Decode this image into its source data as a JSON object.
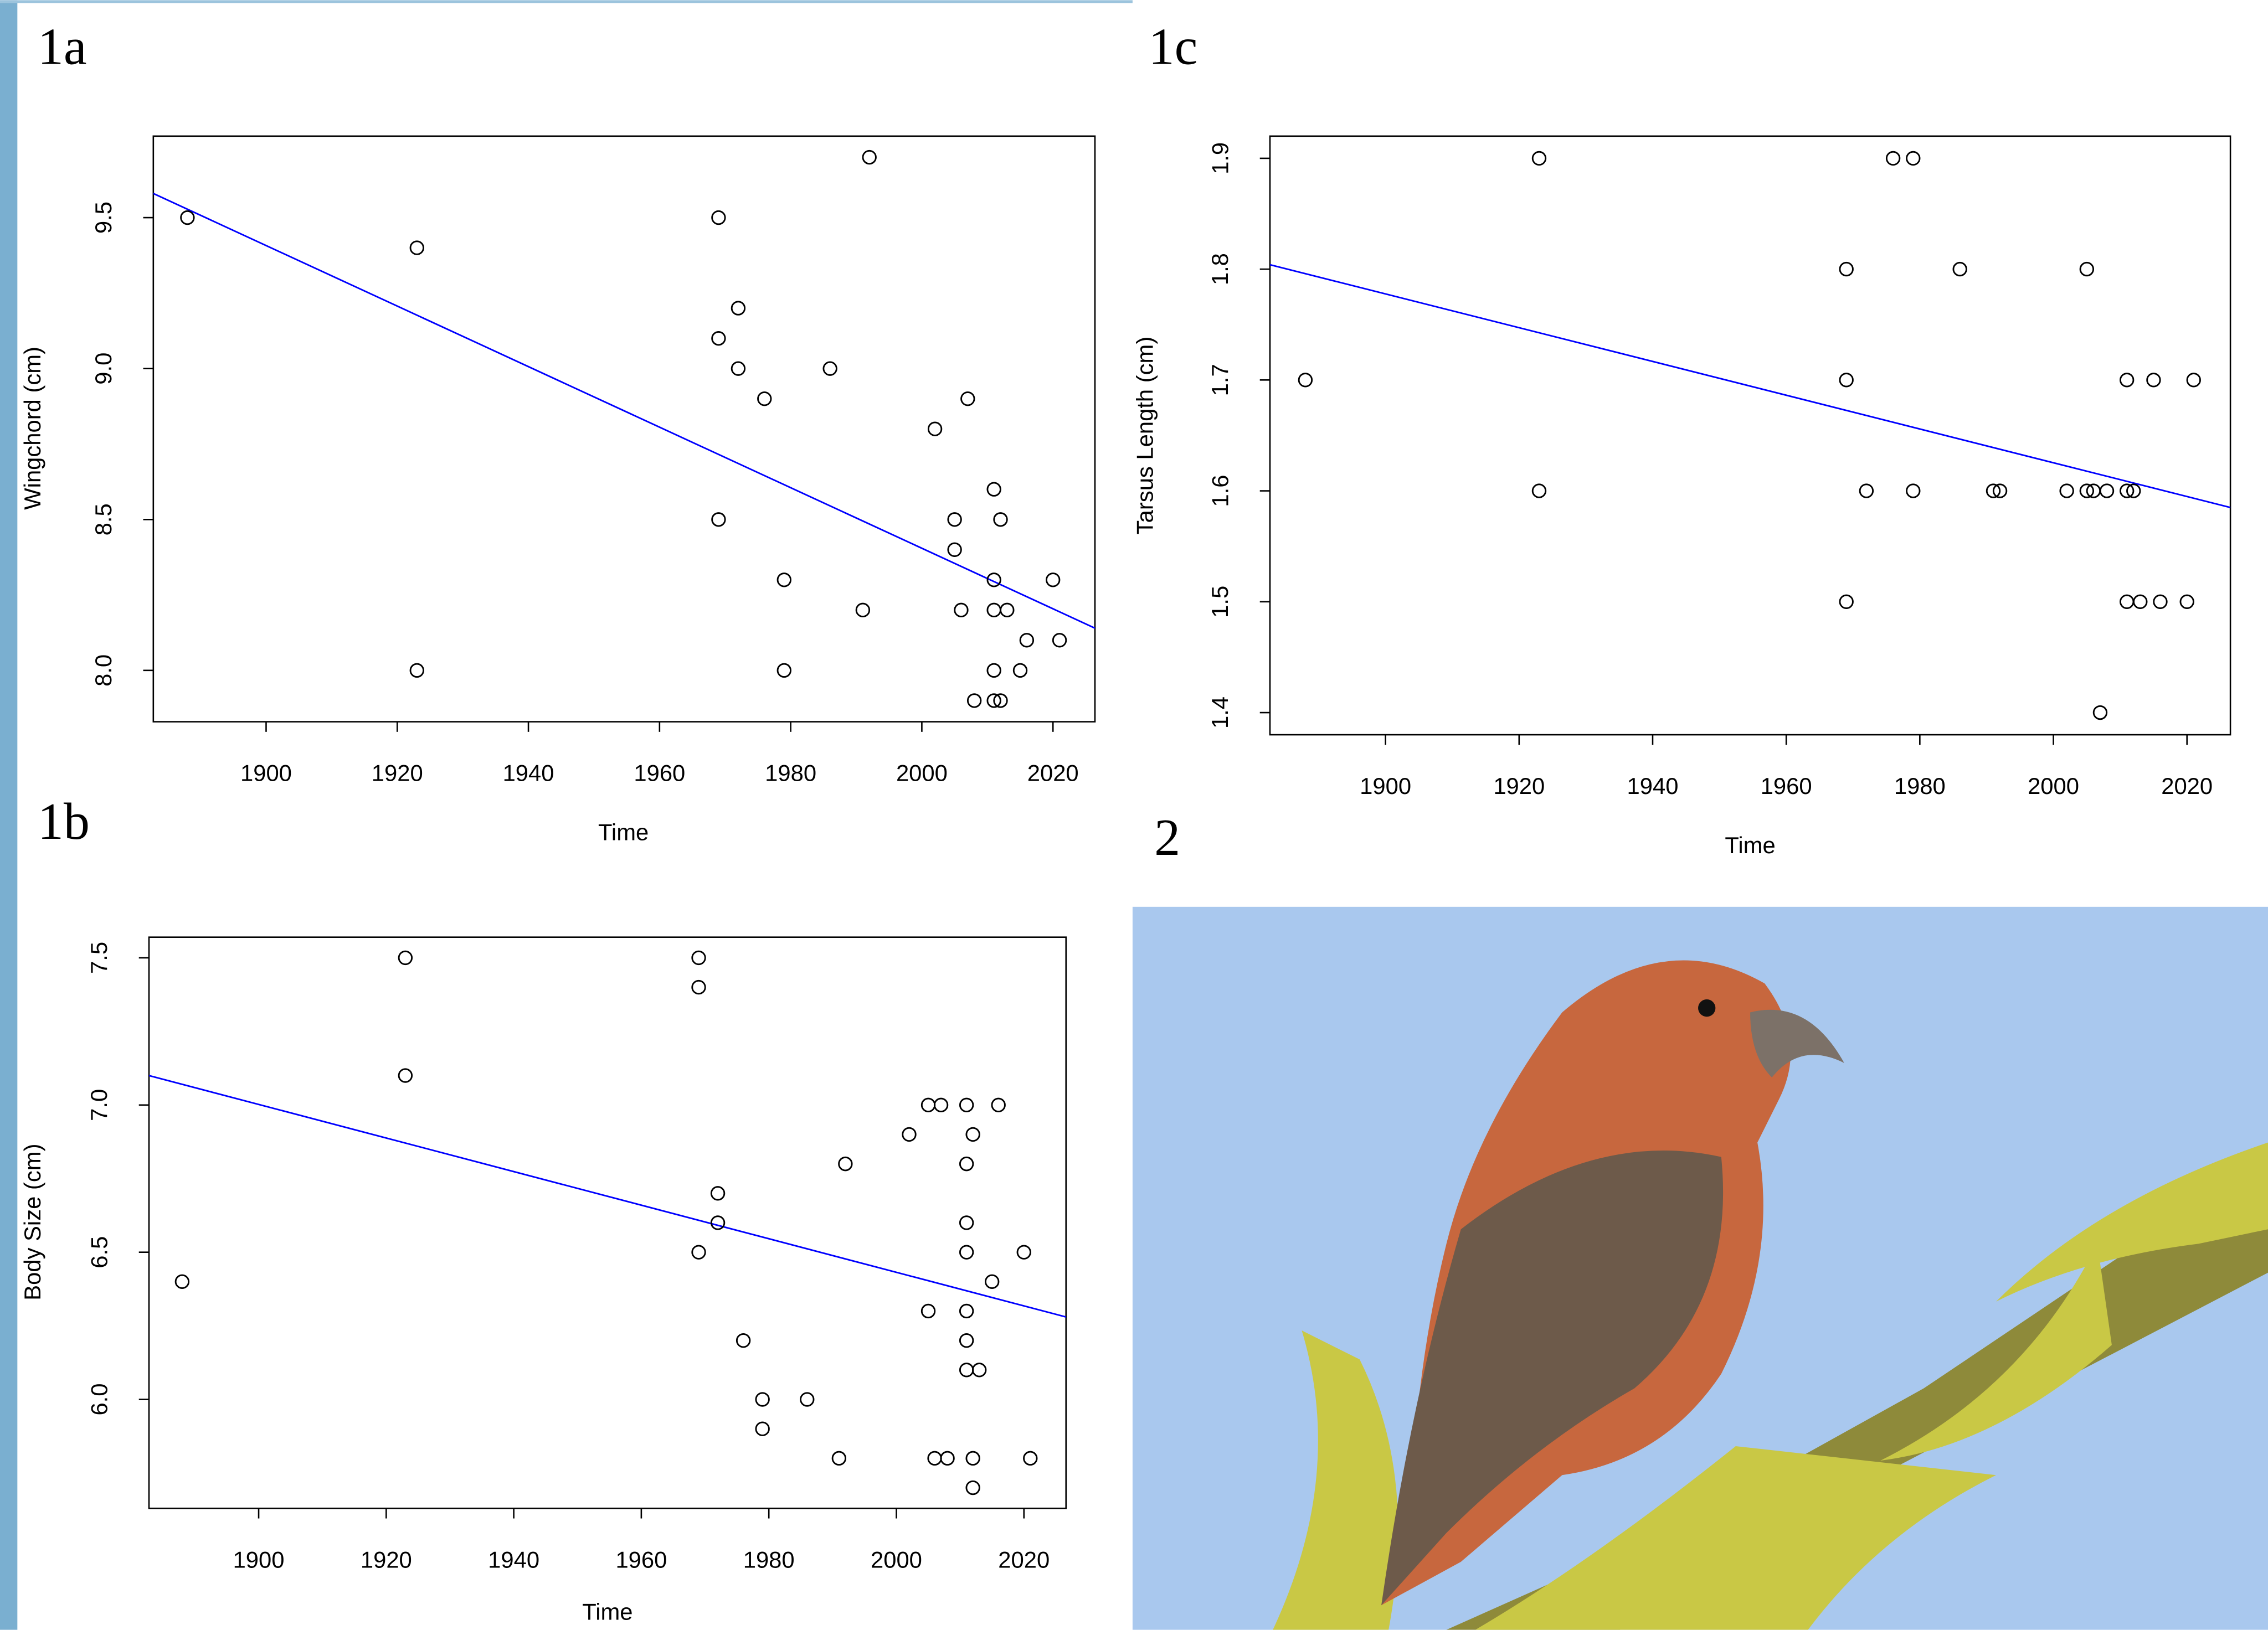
{
  "photo_label": "2",
  "chart_data": [
    {
      "type": "scatter",
      "label": "1a",
      "x_label": "Time",
      "y_label": "Wingchord (cm)",
      "xlim": [
        1882.8,
        2026.4
      ],
      "ylim": [
        7.83,
        9.77
      ],
      "xticks": [
        1900,
        1920,
        1940,
        1960,
        1980,
        2000,
        2020
      ],
      "yticks": [
        {
          "value": 8,
          "label": "8.0"
        },
        8.5,
        {
          "value": 9,
          "label": "9.0"
        },
        9.5
      ],
      "color": "#000000",
      "x": [
        1888,
        1923,
        1923,
        1969,
        1969,
        1972,
        1972,
        1976,
        1969,
        1979,
        1979,
        1986,
        1992,
        1991,
        2002,
        2007,
        2005,
        2005,
        2006,
        2008,
        2011,
        2011,
        2011,
        2011,
        2011,
        2012,
        2012,
        2013,
        2015,
        2016,
        2020,
        2021
      ],
      "y": [
        9.5,
        9.4,
        8.0,
        9.5,
        9.1,
        9.2,
        9.0,
        8.9,
        8.5,
        8.3,
        8.0,
        9.0,
        9.7,
        8.2,
        8.8,
        8.9,
        8.5,
        8.4,
        8.2,
        7.9,
        8.6,
        8.3,
        8.2,
        8.0,
        7.9,
        8.5,
        7.9,
        8.2,
        8.0,
        8.1,
        8.3,
        8.1
      ],
      "fit": {
        "color": "#0000ff",
        "x": [
          1882.8,
          2026.4
        ],
        "y": [
          9.58,
          8.14
        ]
      }
    },
    {
      "type": "scatter",
      "label": "1b",
      "x_label": "Time",
      "y_label": "Body Size (cm)",
      "xlim": [
        1882.8,
        2026.6
      ],
      "ylim": [
        5.63,
        7.57
      ],
      "xticks": [
        1900,
        1920,
        1940,
        1960,
        1980,
        2000,
        2020
      ],
      "yticks": [
        {
          "value": 6,
          "label": "6.0"
        },
        6.5,
        {
          "value": 7,
          "label": "7.0"
        },
        7.5
      ],
      "color": "#000000",
      "x": [
        1888,
        1923,
        1923,
        1969,
        1969,
        1969,
        1972,
        1972,
        1976,
        1979,
        1979,
        1986,
        1991,
        1992,
        2002,
        2005,
        2005,
        2006,
        2007,
        2008,
        2011,
        2011,
        2011,
        2011,
        2011,
        2011,
        2011,
        2012,
        2012,
        2012,
        2013,
        2015,
        2016,
        2020,
        2021
      ],
      "y": [
        6.4,
        7.5,
        7.1,
        7.5,
        7.4,
        6.5,
        6.7,
        6.6,
        6.2,
        6.0,
        5.9,
        6.0,
        5.8,
        6.8,
        6.9,
        7.0,
        6.3,
        5.8,
        7.0,
        5.8,
        7.0,
        6.8,
        6.6,
        6.5,
        6.3,
        6.2,
        6.1,
        6.9,
        5.8,
        5.7,
        6.1,
        6.4,
        7.0,
        6.5,
        5.8
      ],
      "fit": {
        "color": "#0000ff",
        "x": [
          1882.8,
          2026.6
        ],
        "y": [
          7.1,
          6.28
        ]
      }
    },
    {
      "type": "scatter",
      "label": "1c",
      "x_label": "Time",
      "y_label": "Tarsus Length (cm)",
      "xlim": [
        1882.7,
        2026.5
      ],
      "ylim": [
        1.38,
        1.92
      ],
      "xticks": [
        1900,
        1920,
        1940,
        1960,
        1980,
        2000,
        2020
      ],
      "yticks": [
        1.4,
        1.5,
        1.6,
        1.7,
        1.8,
        1.9
      ],
      "color": "#000000",
      "x": [
        1888,
        1923,
        1923,
        1969,
        1969,
        1969,
        1972,
        1976,
        1979,
        1979,
        1986,
        1991,
        1992,
        2002,
        2005,
        2005,
        2006,
        2007,
        2008,
        2011,
        2011,
        2011,
        2012,
        2013,
        2015,
        2016,
        2020,
        2021
      ],
      "y": [
        1.7,
        1.9,
        1.6,
        1.8,
        1.7,
        1.5,
        1.6,
        1.9,
        1.9,
        1.6,
        1.8,
        1.6,
        1.6,
        1.6,
        1.8,
        1.6,
        1.6,
        1.4,
        1.6,
        1.7,
        1.6,
        1.5,
        1.6,
        1.5,
        1.7,
        1.5,
        1.5,
        1.7
      ],
      "fit": {
        "color": "#0000ff",
        "x": [
          1882.7,
          2026.5
        ],
        "y": [
          1.804,
          1.585
        ]
      }
    }
  ]
}
